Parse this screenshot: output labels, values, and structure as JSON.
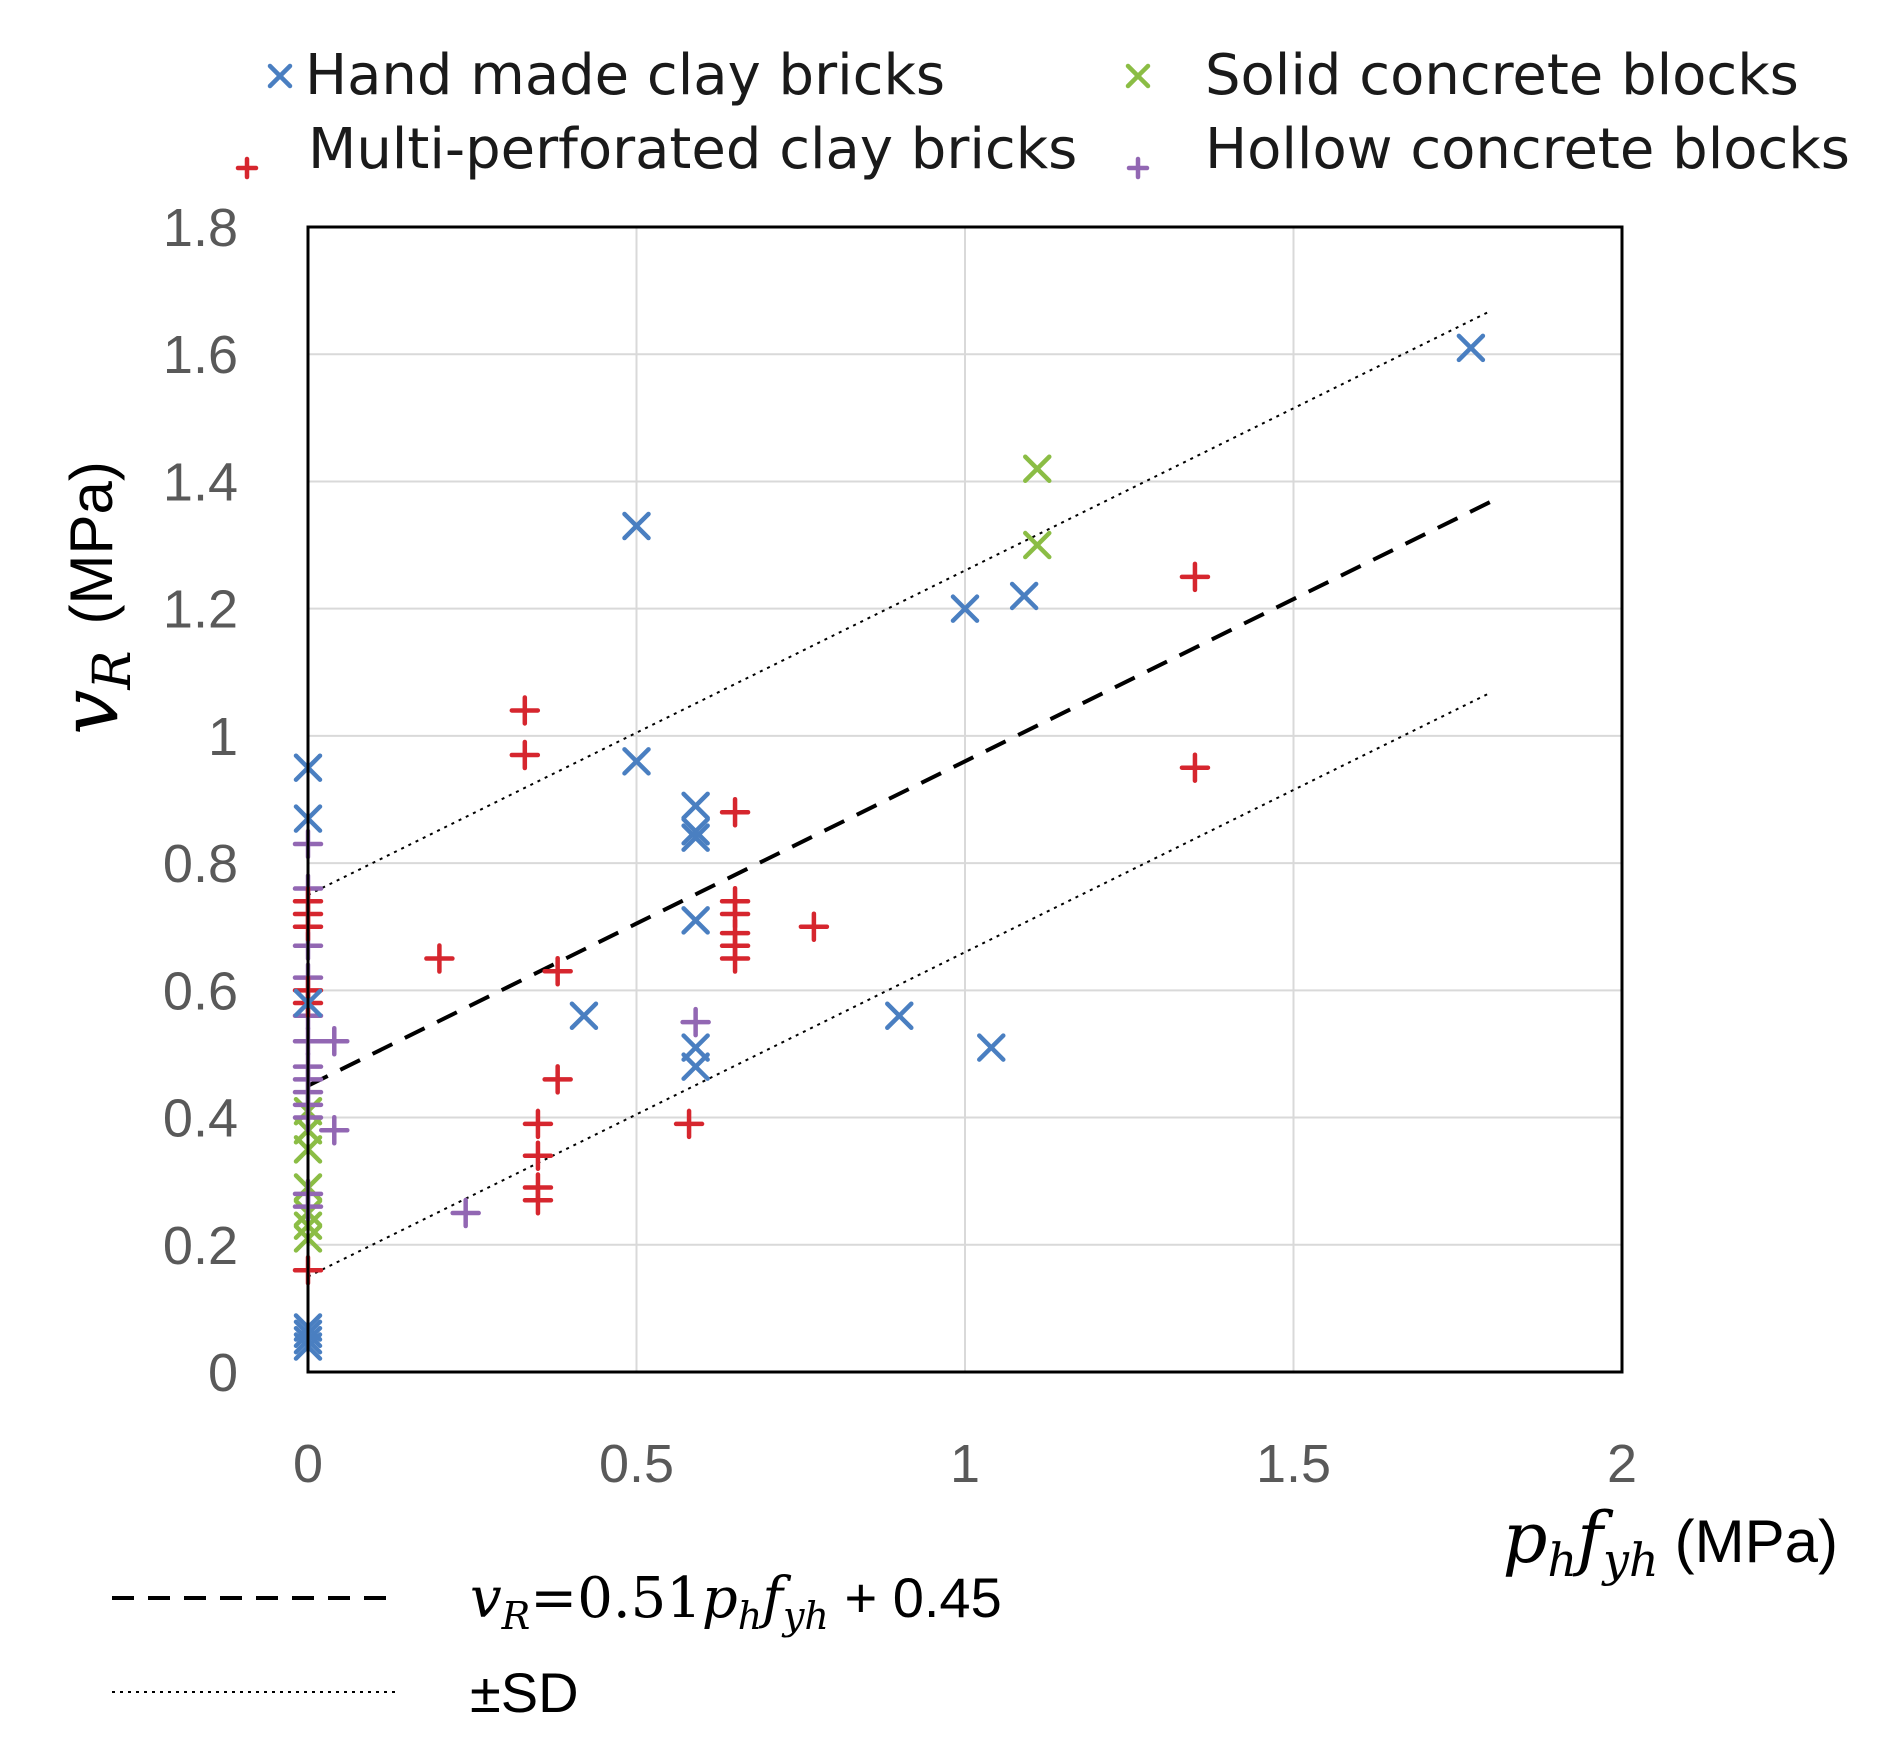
{
  "chart_data": {
    "type": "scatter",
    "title": "",
    "xlabel": {
      "symbol_p": "p",
      "sub_h": "h",
      "symbol_f": "f",
      "sub_yh": "yh",
      "unit": "(MPa)"
    },
    "ylabel": {
      "symbol": "v",
      "sub": "R",
      "unit": "(MPa)"
    },
    "xlim": [
      0,
      2
    ],
    "ylim": [
      0,
      1.8
    ],
    "xticks": [
      0,
      0.5,
      1,
      1.5,
      2
    ],
    "xtick_labels": [
      "0",
      "0.5",
      "1",
      "1.5",
      "2"
    ],
    "yticks": [
      0,
      0.2,
      0.4,
      0.6,
      0.8,
      1.0,
      1.2,
      1.4,
      1.6,
      1.8
    ],
    "ytick_labels": [
      "0",
      "0.2",
      "0.4",
      "0.6",
      "0.8",
      "1",
      "1.2",
      "1.4",
      "1.6",
      "1.8"
    ],
    "grid": true,
    "legend_position": "top",
    "series": [
      {
        "name": "Hand made clay bricks",
        "marker": "x",
        "color": "#4a7fc1",
        "points": [
          [
            0,
            0.95
          ],
          [
            0,
            0.87
          ],
          [
            0,
            0.58
          ],
          [
            0,
            0.06
          ],
          [
            0,
            0.05
          ],
          [
            0,
            0.07
          ],
          [
            0,
            0.04
          ],
          [
            0.5,
            1.33
          ],
          [
            0.5,
            0.96
          ],
          [
            0.42,
            0.56
          ],
          [
            0.59,
            0.89
          ],
          [
            0.59,
            0.85
          ],
          [
            0.59,
            0.84
          ],
          [
            0.59,
            0.71
          ],
          [
            0.59,
            0.51
          ],
          [
            0.59,
            0.48
          ],
          [
            1.0,
            1.2
          ],
          [
            1.09,
            1.22
          ],
          [
            0.9,
            0.56
          ],
          [
            1.04,
            0.51
          ],
          [
            1.77,
            1.61
          ]
        ]
      },
      {
        "name": "Solid concrete blocks",
        "marker": "x",
        "color": "#8bbd45",
        "points": [
          [
            0,
            0.41
          ],
          [
            0,
            0.38
          ],
          [
            0,
            0.35
          ],
          [
            0,
            0.29
          ],
          [
            0,
            0.25
          ],
          [
            0,
            0.23
          ],
          [
            0,
            0.21
          ],
          [
            1.11,
            1.42
          ],
          [
            1.11,
            1.3
          ]
        ]
      },
      {
        "name": "Multi-perforated clay bricks",
        "marker": "+",
        "color": "#d6262e",
        "points": [
          [
            0,
            0.74
          ],
          [
            0,
            0.72
          ],
          [
            0,
            0.7
          ],
          [
            0,
            0.6
          ],
          [
            0,
            0.58
          ],
          [
            0,
            0.16
          ],
          [
            0.33,
            1.04
          ],
          [
            0.33,
            0.97
          ],
          [
            0.2,
            0.65
          ],
          [
            0.38,
            0.63
          ],
          [
            0.38,
            0.46
          ],
          [
            0.35,
            0.39
          ],
          [
            0.35,
            0.34
          ],
          [
            0.35,
            0.29
          ],
          [
            0.35,
            0.27
          ],
          [
            0.58,
            0.39
          ],
          [
            0.65,
            0.88
          ],
          [
            0.65,
            0.74
          ],
          [
            0.65,
            0.72
          ],
          [
            0.65,
            0.69
          ],
          [
            0.65,
            0.67
          ],
          [
            0.65,
            0.65
          ],
          [
            0.77,
            0.7
          ],
          [
            1.35,
            1.25
          ],
          [
            1.35,
            0.95
          ]
        ]
      },
      {
        "name": "Hollow concrete blocks",
        "marker": "+",
        "color": "#9267b3",
        "points": [
          [
            0,
            0.83
          ],
          [
            0,
            0.76
          ],
          [
            0,
            0.67
          ],
          [
            0,
            0.62
          ],
          [
            0,
            0.56
          ],
          [
            0,
            0.52
          ],
          [
            0,
            0.48
          ],
          [
            0,
            0.46
          ],
          [
            0,
            0.44
          ],
          [
            0,
            0.42
          ],
          [
            0,
            0.4
          ],
          [
            0,
            0.28
          ],
          [
            0,
            0.26
          ],
          [
            0.04,
            0.52
          ],
          [
            0.04,
            0.38
          ],
          [
            0.24,
            0.25
          ],
          [
            0.59,
            0.55
          ]
        ]
      }
    ],
    "fit_line": {
      "slope": 0.51,
      "intercept": 0.45,
      "sd": 0.3,
      "x_range": [
        0,
        1.8
      ]
    },
    "bottom_legend": {
      "fit": {
        "v": "v",
        "R": "R",
        "eq": "=0.51",
        "p": "p",
        "h": "h",
        "f": "f",
        "yh": "yh",
        "tail": " + 0.45"
      },
      "sd": "±SD"
    },
    "colors": {
      "axis": "#000000",
      "grid": "#d9d9d9",
      "tick_text": "#595959"
    }
  }
}
